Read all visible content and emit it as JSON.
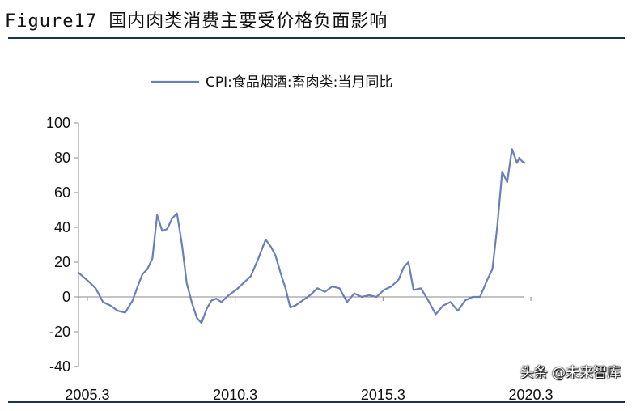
{
  "figure": {
    "title": "Figure17 国内肉类消费主要受价格负面影响",
    "watermark": "头条 @未来智库"
  },
  "chart_data": {
    "type": "line",
    "title": "",
    "xlabel": "",
    "ylabel": "",
    "ylim": [
      -40,
      100
    ],
    "yticks": [
      100,
      80,
      60,
      40,
      20,
      0,
      -20,
      -40
    ],
    "xticks": [
      "2005.3",
      "2010.3",
      "2015.3",
      "2020.3"
    ],
    "grid": false,
    "legend_position": "top-center",
    "series": [
      {
        "name": "CPI:食品烟酒:畜肉类:当月同比",
        "color": "#6b7fb8",
        "x": [
          2005.17,
          2005.5,
          2005.75,
          2006.0,
          2006.25,
          2006.5,
          2006.75,
          2007.0,
          2007.17,
          2007.33,
          2007.5,
          2007.67,
          2007.83,
          2008.0,
          2008.17,
          2008.33,
          2008.5,
          2008.67,
          2008.83,
          2009.0,
          2009.17,
          2009.33,
          2009.5,
          2009.67,
          2009.83,
          2010.0,
          2010.25,
          2010.5,
          2010.75,
          2011.0,
          2011.25,
          2011.5,
          2011.67,
          2011.83,
          2012.0,
          2012.17,
          2012.33,
          2012.5,
          2012.75,
          2013.0,
          2013.25,
          2013.5,
          2013.75,
          2014.0,
          2014.25,
          2014.5,
          2014.75,
          2015.0,
          2015.25,
          2015.5,
          2015.75,
          2016.0,
          2016.17,
          2016.33,
          2016.5,
          2016.75,
          2017.0,
          2017.25,
          2017.5,
          2017.75,
          2018.0,
          2018.25,
          2018.5,
          2018.75,
          2019.0,
          2019.17,
          2019.33,
          2019.5,
          2019.67,
          2019.83,
          2020.0,
          2020.08,
          2020.17,
          2020.25
        ],
        "values": [
          14,
          9,
          5,
          -3,
          -5,
          -8,
          -9,
          -2,
          6,
          13,
          16,
          22,
          47,
          38,
          39,
          45,
          48,
          30,
          8,
          -3,
          -12,
          -15,
          -7,
          -2,
          -1,
          -3,
          1,
          4,
          8,
          12,
          22,
          33,
          29,
          24,
          14,
          5,
          -6,
          -5,
          -2,
          1,
          5,
          3,
          6,
          5,
          -3,
          2,
          0,
          1,
          0,
          4,
          6,
          10,
          17,
          20,
          4,
          5,
          -2,
          -10,
          -5,
          -3,
          -8,
          -2,
          0,
          0,
          10,
          16,
          40,
          72,
          66,
          85,
          77,
          80,
          78,
          77
        ]
      }
    ]
  }
}
